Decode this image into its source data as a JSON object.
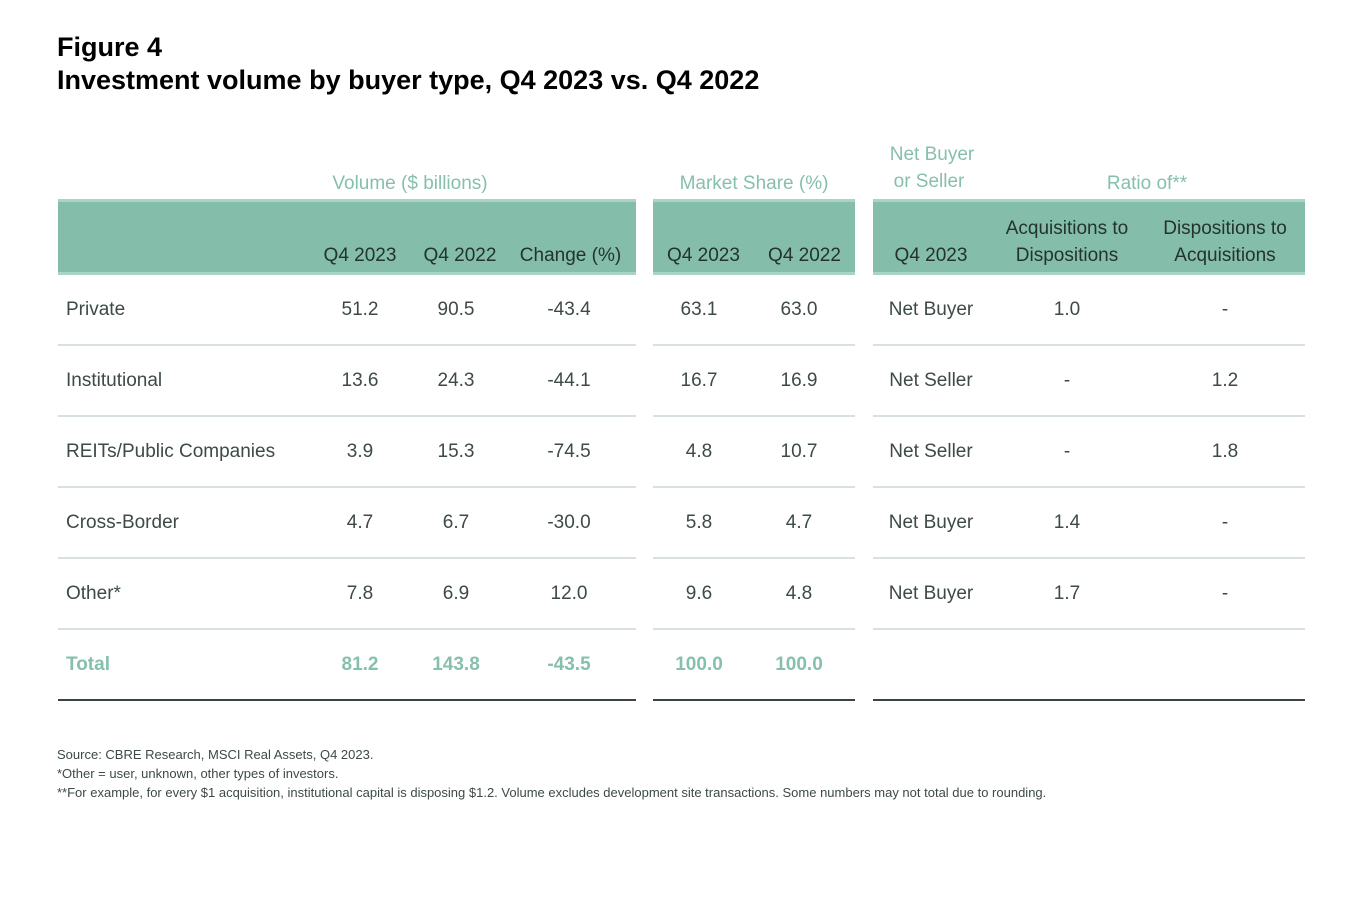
{
  "figure_label": "Figure 4",
  "title": "Investment volume by buyer type, Q4 2023 vs. Q4 2022",
  "group_headers": {
    "volume": "Volume ($ billions)",
    "market_share": "Market Share (%)",
    "net_line1": "Net Buyer",
    "net_line2": "or Seller",
    "ratio": "Ratio of**"
  },
  "column_headers": {
    "vol_q4_2023": "Q4 2023",
    "vol_q4_2022": "Q4 2022",
    "vol_change": "Change (%)",
    "ms_q4_2023": "Q4 2023",
    "ms_q4_2022": "Q4 2022",
    "net_q4_2023": "Q4 2023",
    "acq_line1": "Acquisitions to",
    "acq_line2": "Dispositions",
    "disp_line1": "Dispositions to",
    "disp_line2": "Acquisitions"
  },
  "rows": [
    {
      "type": "Private",
      "vol_2023": "51.2",
      "vol_2022": "90.5",
      "change": "-43.4",
      "ms_2023": "63.1",
      "ms_2022": "63.0",
      "net": "Net Buyer",
      "acq": "1.0",
      "disp": "-"
    },
    {
      "type": "Institutional",
      "vol_2023": "13.6",
      "vol_2022": "24.3",
      "change": "-44.1",
      "ms_2023": "16.7",
      "ms_2022": "16.9",
      "net": "Net Seller",
      "acq": "-",
      "disp": "1.2"
    },
    {
      "type": "REITs/Public Companies",
      "vol_2023": "3.9",
      "vol_2022": "15.3",
      "change": "-74.5",
      "ms_2023": "4.8",
      "ms_2022": "10.7",
      "net": "Net Seller",
      "acq": "-",
      "disp": "1.8"
    },
    {
      "type": "Cross-Border",
      "vol_2023": "4.7",
      "vol_2022": "6.7",
      "change": "-30.0",
      "ms_2023": "5.8",
      "ms_2022": "4.7",
      "net": "Net Buyer",
      "acq": "1.4",
      "disp": "-"
    },
    {
      "type": "Other*",
      "vol_2023": "7.8",
      "vol_2022": "6.9",
      "change": "12.0",
      "ms_2023": "9.6",
      "ms_2022": "4.8",
      "net": "Net Buyer",
      "acq": "1.7",
      "disp": "-"
    },
    {
      "type": "Total",
      "vol_2023": "81.2",
      "vol_2022": "143.8",
      "change": "-43.5",
      "ms_2023": "100.0",
      "ms_2022": "100.0",
      "net": "",
      "acq": "",
      "disp": ""
    }
  ],
  "notes": [
    "Source: CBRE Research, MSCI Real Assets, Q4 2023.",
    "*Other = user, unknown, other types of investors.",
    "**For example, for every $1 acquisition, institutional capital is disposing $1.2. Volume excludes development site transactions. Some numbers may not total due to rounding."
  ]
}
